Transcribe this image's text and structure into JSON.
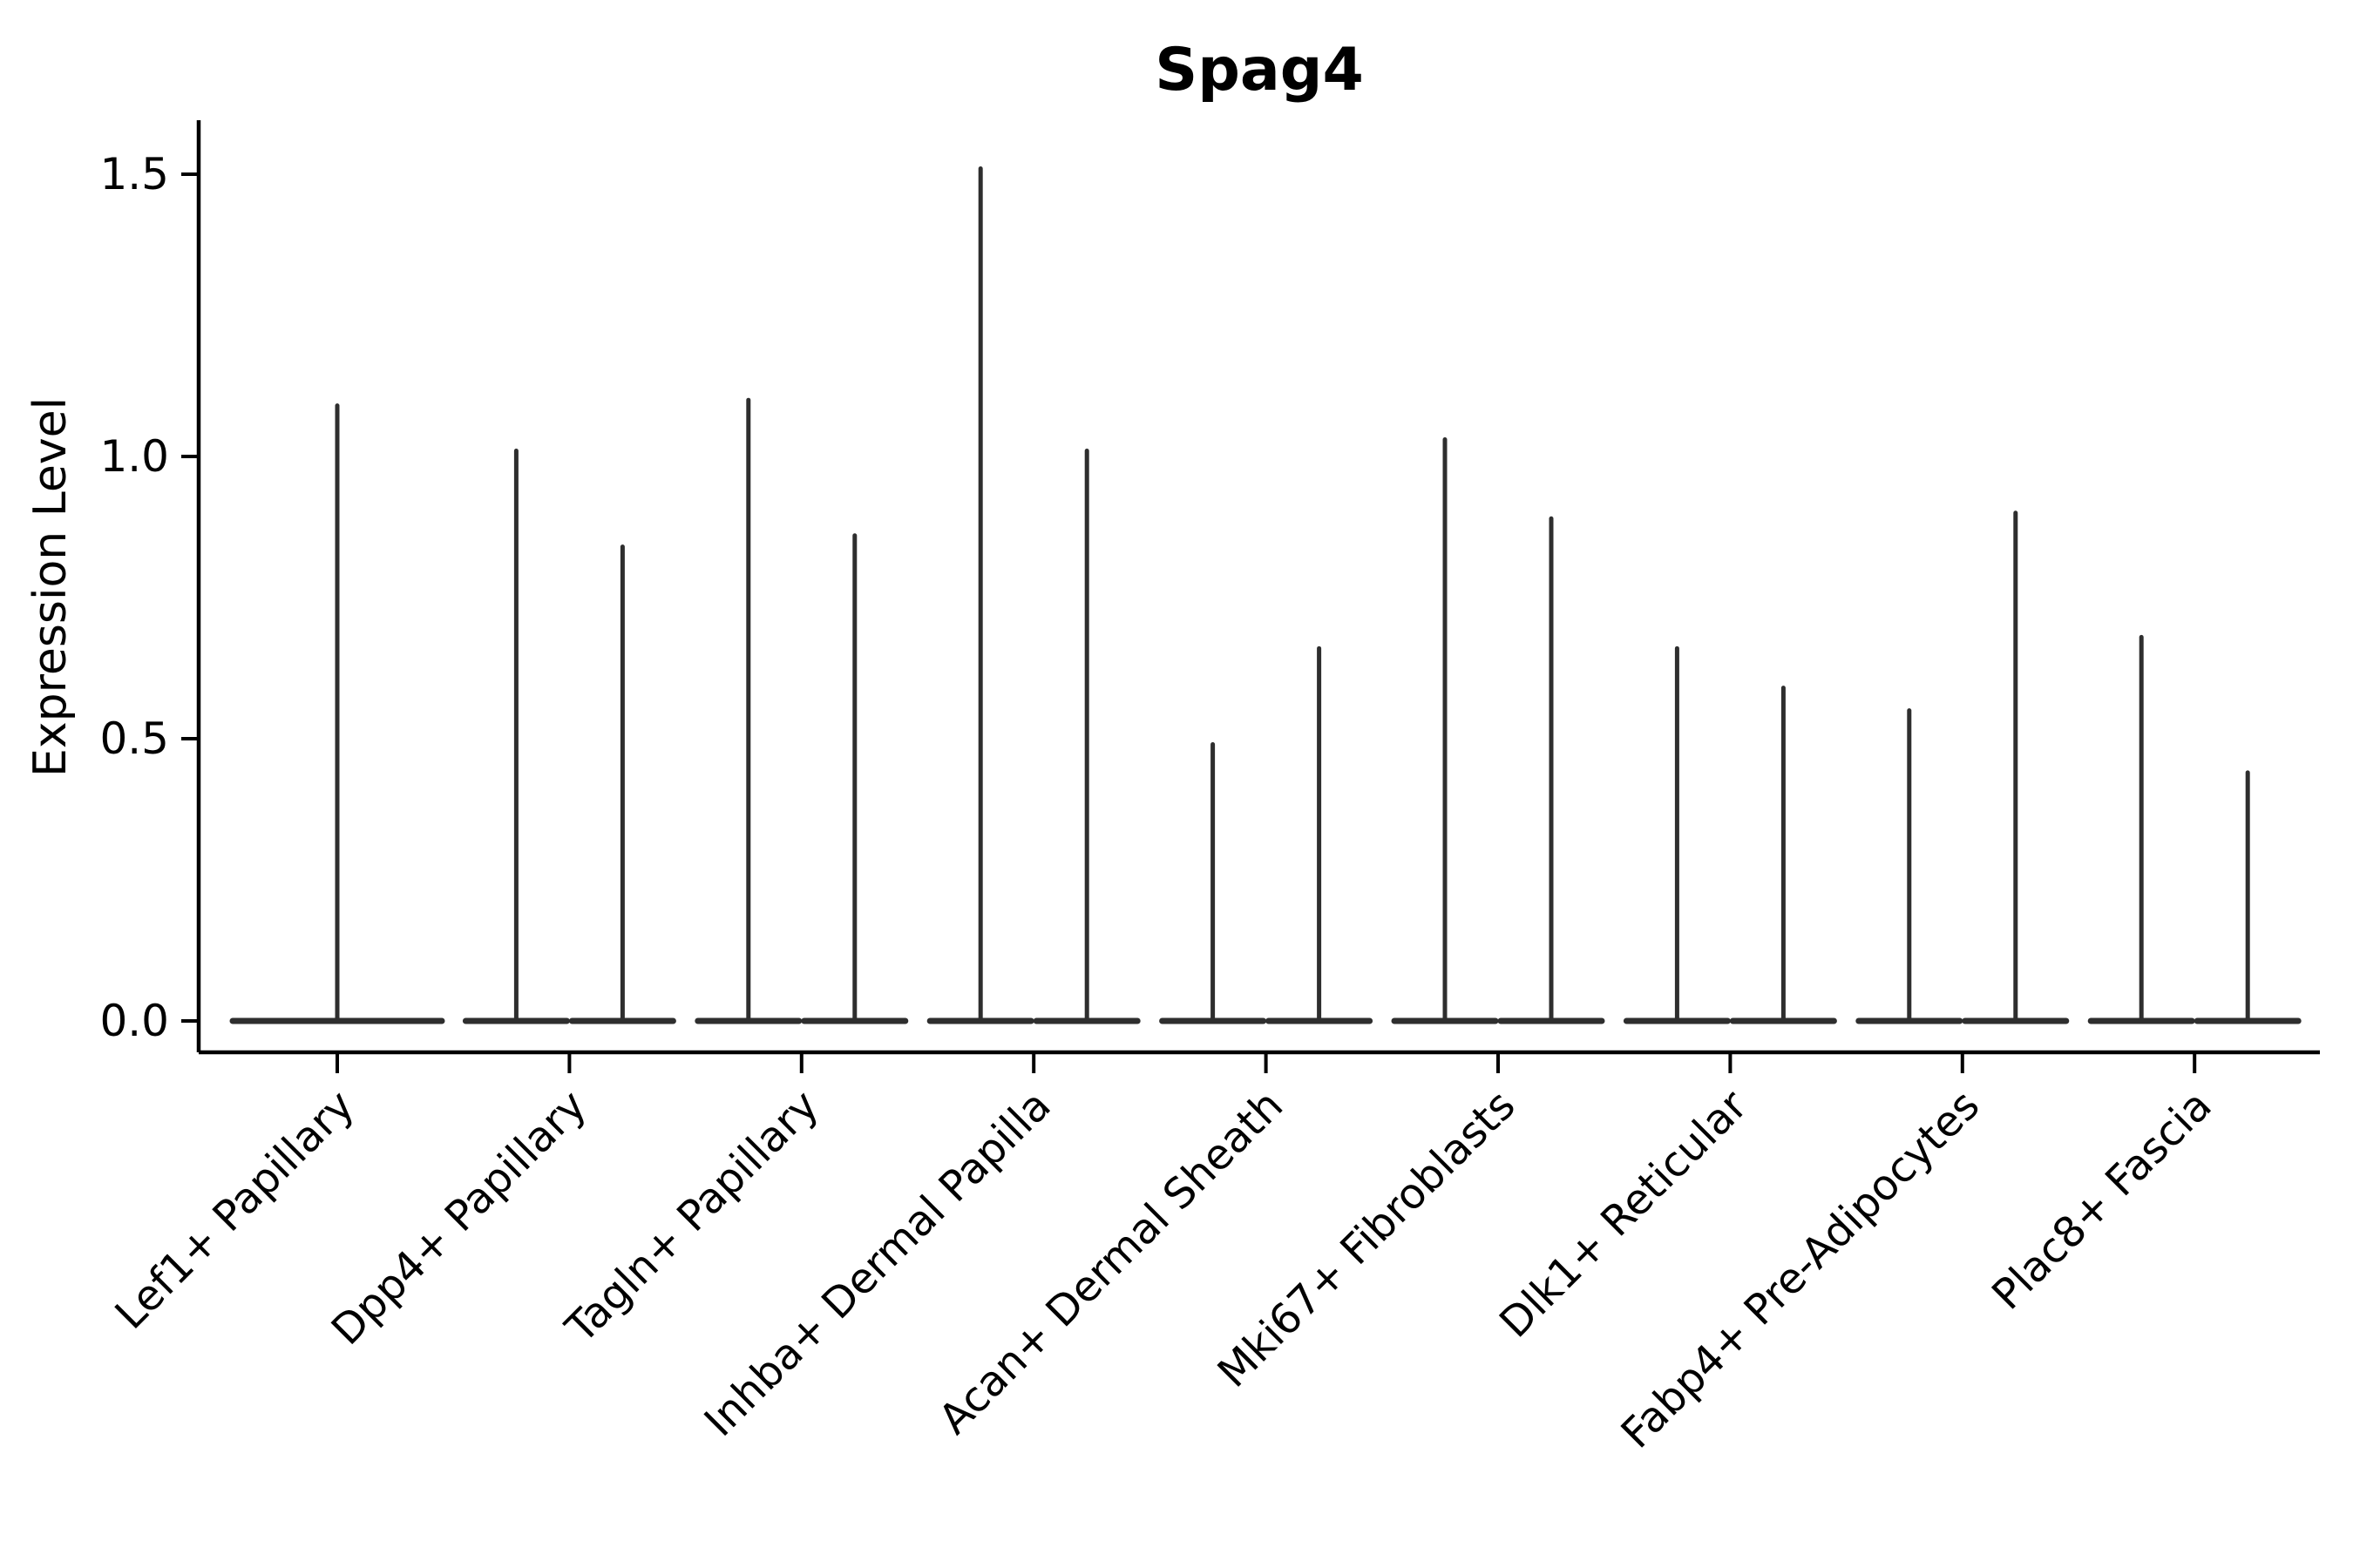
{
  "chart_data": {
    "type": "violin",
    "title": "Spag4",
    "ylabel": "Expression Level",
    "xlabel": "",
    "background_color": "#ffffff",
    "axis_color": "#000000",
    "violin_color": "#2e2e2e",
    "grid": false,
    "legend": "none",
    "ylim": [
      -0.06,
      1.6
    ],
    "yticks": [
      {
        "value": 0.0,
        "label": "0.0"
      },
      {
        "value": 0.5,
        "label": "0.5"
      },
      {
        "value": 1.0,
        "label": "1.0"
      },
      {
        "value": 1.5,
        "label": "1.5"
      }
    ],
    "note": "Each category shows flat zero-density violin bases with thin expression spikes; categories 2-9 contain two adjacent violins, category 1 a single centered violin.",
    "categories": [
      {
        "label": "Lef1+ Papillary",
        "spike_heights": [
          1.09
        ]
      },
      {
        "label": "Dpp4+ Papillary",
        "spike_heights": [
          1.01,
          0.84
        ]
      },
      {
        "label": "Tagln+ Papillary",
        "spike_heights": [
          1.1,
          0.86
        ]
      },
      {
        "label": "Inhba+ Dermal Papilla",
        "spike_heights": [
          1.51,
          1.01
        ]
      },
      {
        "label": "Acan+ Dermal Sheath",
        "spike_heights": [
          0.49,
          0.66
        ]
      },
      {
        "label": "Mki67+ Fibroblasts",
        "spike_heights": [
          1.03,
          0.89
        ]
      },
      {
        "label": "Dlk1+ Reticular",
        "spike_heights": [
          0.66,
          0.59
        ]
      },
      {
        "label": "Fabp4+ Pre-Adipocytes",
        "spike_heights": [
          0.55,
          0.9
        ]
      },
      {
        "label": "Plac8+ Fascia",
        "spike_heights": [
          0.68,
          0.44
        ]
      }
    ]
  }
}
